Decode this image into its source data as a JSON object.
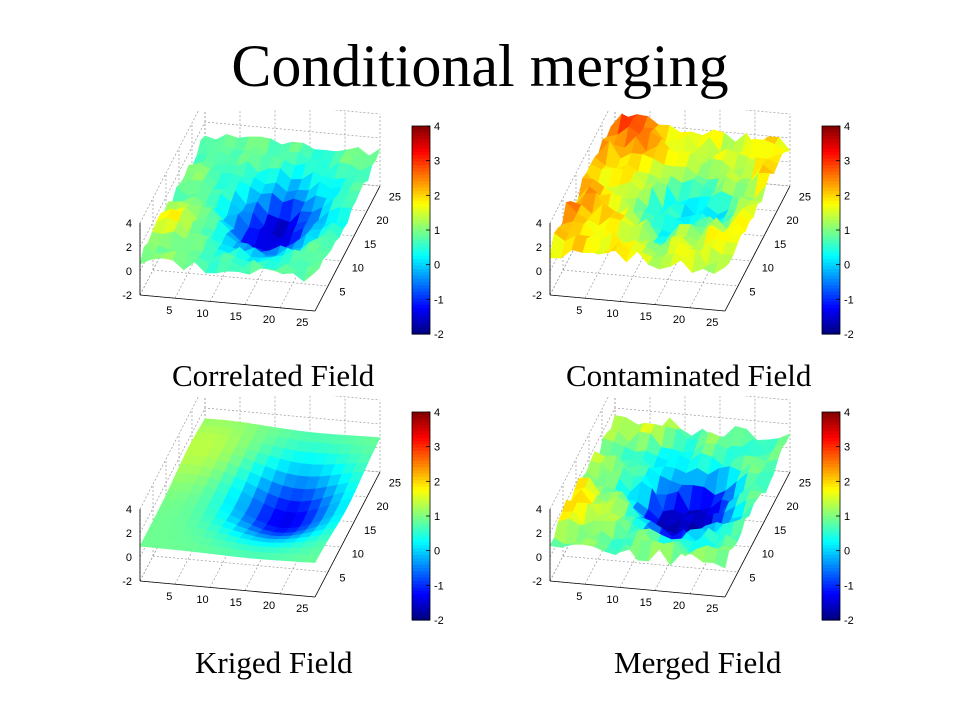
{
  "title": "Conditional merging",
  "colormap": "jet",
  "colorbar_ticks": [
    "4",
    "3",
    "2",
    "1",
    "0",
    "-1",
    "-2"
  ],
  "axis_ticks": {
    "x": [
      "5",
      "10",
      "15",
      "20",
      "25"
    ],
    "y": [
      "5",
      "10",
      "15",
      "20",
      "25"
    ],
    "z": [
      "4",
      "2",
      "0",
      "-2"
    ]
  },
  "chart_data": [
    {
      "type": "surface",
      "caption": "Correlated Field",
      "clim": [
        -2,
        4
      ],
      "zlim": [
        -2,
        4
      ],
      "roughness": "medium",
      "trend": "low-centre blue basin, cyan/green edges"
    },
    {
      "type": "surface",
      "caption": "Contaminated Field",
      "clim": [
        -2,
        4
      ],
      "zlim": [
        -2,
        4
      ],
      "roughness": "high",
      "trend": "yellow/red peaks on edges, cyan centre"
    },
    {
      "type": "surface",
      "caption": "Kriged Field",
      "clim": [
        -2,
        4
      ],
      "zlim": [
        -2,
        4
      ],
      "roughness": "smooth",
      "trend": "smooth blue low in centre-right"
    },
    {
      "type": "surface",
      "caption": "Merged Field",
      "clim": [
        -2,
        4
      ],
      "zlim": [
        -2,
        4
      ],
      "roughness": "high",
      "trend": "deep blue basin, yellow edges"
    }
  ]
}
